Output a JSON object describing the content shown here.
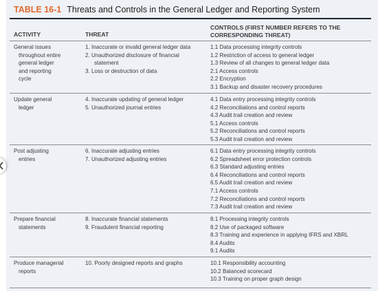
{
  "table": {
    "number": "TABLE 16-1",
    "title": "Threats and Controls in the General Ledger and Reporting System",
    "headers": {
      "activity": "ACTIVITY",
      "threat": "THREAT",
      "controls_line1": "CONTROLS (FIRST NUMBER REFERS TO THE",
      "controls_line2": "CORRESPONDING THREAT)"
    },
    "rows": [
      {
        "activity": [
          "General issues",
          "throughout entire",
          "general ledger",
          "and reporting",
          "cycle"
        ],
        "threats": [
          "1. Inaccurate or invalid general ledger data",
          "2. Unauthorized disclosure of financial statement",
          "3. Loss or destruction of data"
        ],
        "controls": [
          "1.1 Data processing integrity controls",
          "1.2 Restriction of access to general ledger",
          "1.3 Review of all changes to general ledger data",
          "2.1 Access controls",
          "2.2 Encryption",
          "3.1 Backup and disaster recovery procedures"
        ]
      },
      {
        "activity": [
          "Update general",
          "ledger"
        ],
        "threats": [
          "4. Inaccurate updating of general ledger",
          "5. Unauthorized journal entries"
        ],
        "controls": [
          "4.1 Data entry processing integrity controls",
          "4.2 Reconciliations and control reports",
          "4.3 Audit trail creation and review",
          "5.1 Access controls",
          "5.2 Reconciliations and control reports",
          "5.3 Audit trail creation and review"
        ]
      },
      {
        "activity": [
          "Post adjusting",
          "entries"
        ],
        "threats": [
          "6. Inaccurate adjusting entries",
          "7. Unauthorized adjusting entries"
        ],
        "controls": [
          "6.1 Data entry processing integrity controls",
          "6.2 Spreadsheet error protection controls",
          "6.3 Standard adjusting entries",
          "6.4 Reconciliations and control reports",
          "6.5 Audit trail creation and review",
          "7.1 Access controls",
          "7.2 Reconciliations and control reports",
          "7.3 Audit trail creation and review"
        ]
      },
      {
        "activity": [
          "Prepare financial",
          "statements"
        ],
        "threats": [
          "8. Inaccurate financial statements",
          "9. Fraudulent financial reporting"
        ],
        "controls": [
          "8.1 Processing integrity controls",
          "8.2 Use of packaged software",
          "8.3 Training and experience in applying IFRS and XBRL",
          "8.4 Audits",
          "9.1 Audits"
        ]
      },
      {
        "activity": [
          "Produce managerial",
          "reports"
        ],
        "threats": [
          "10. Poorly designed reports and graphs"
        ],
        "controls": [
          "10.1 Responsibility accounting",
          "10.2 Balanced scorecard",
          "10.3 Training on proper graph design"
        ]
      }
    ]
  }
}
